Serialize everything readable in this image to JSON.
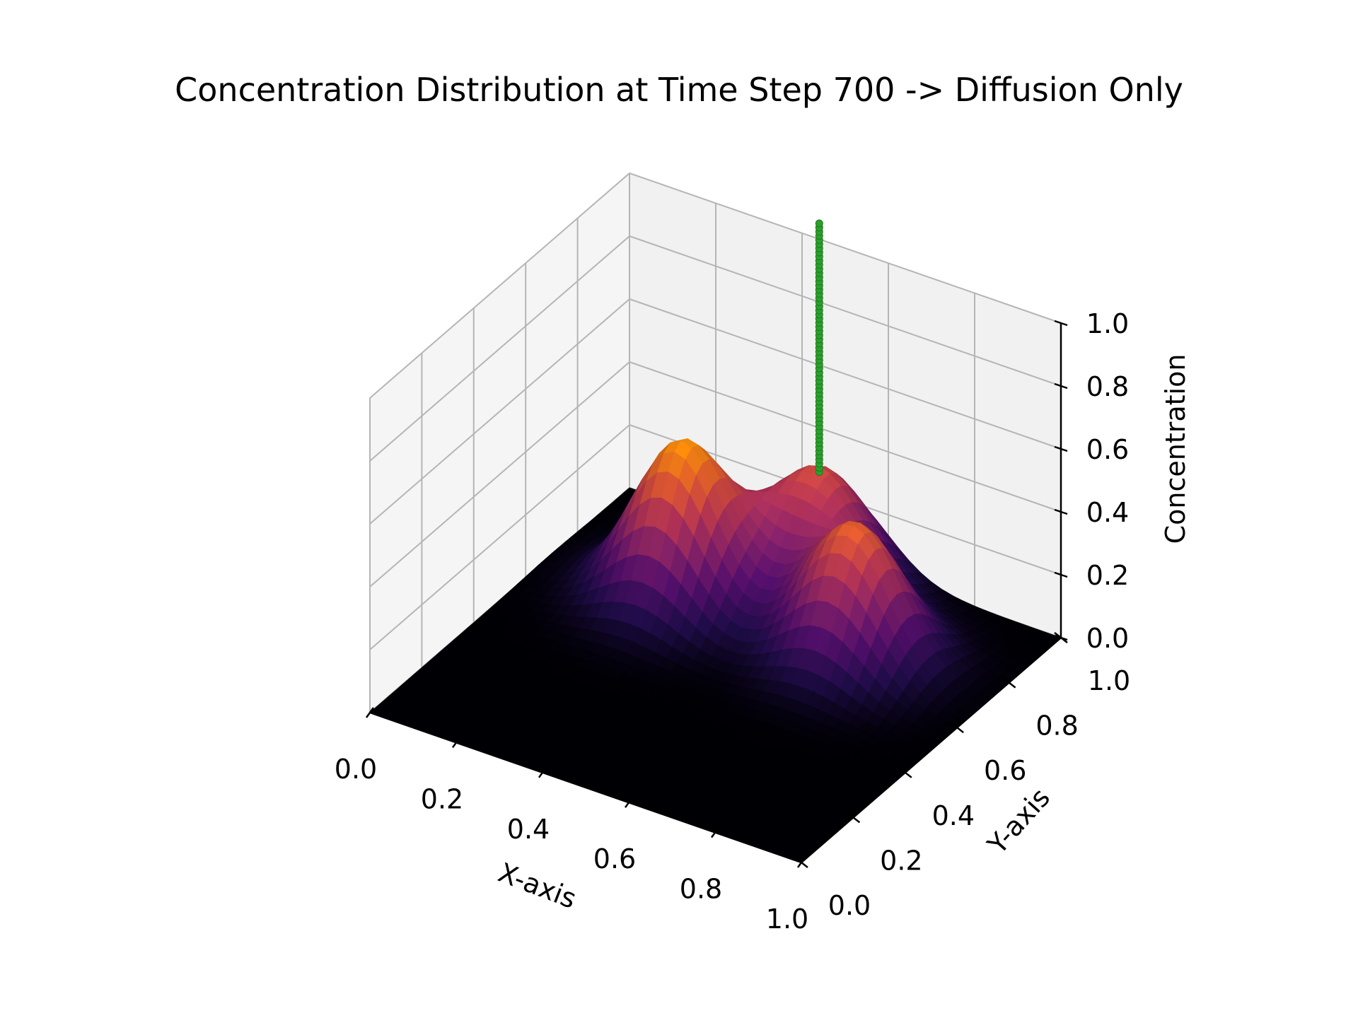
{
  "chart_data": {
    "type": "surface3d",
    "title": "Concentration Distribution at Time Step 700 -> Diffusion Only",
    "xlabel": "X-axis",
    "ylabel": "Y-axis",
    "zlabel": "Concentration",
    "xlim": [
      0.0,
      1.0
    ],
    "ylim": [
      0.0,
      1.0
    ],
    "zlim": [
      0.0,
      1.0
    ],
    "x_ticks": [
      "0.0",
      "0.2",
      "0.4",
      "0.6",
      "0.8",
      "1.0"
    ],
    "y_ticks": [
      "0.0",
      "0.2",
      "0.4",
      "0.6",
      "0.8",
      "1.0"
    ],
    "z_ticks": [
      "0.0",
      "0.2",
      "0.4",
      "0.6",
      "0.8",
      "1.0"
    ],
    "grid": true,
    "colormap": "inferno",
    "surface_peaks": [
      {
        "x": 0.3,
        "y": 0.7,
        "z": 0.5
      },
      {
        "x": 0.7,
        "y": 0.7,
        "z": 0.42
      },
      {
        "x": 0.5,
        "y": 0.9,
        "z": 0.36
      }
    ],
    "particle_column": {
      "x": 0.5,
      "y": 0.9,
      "z_range": [
        0.36,
        1.15
      ],
      "color": "#2ca02c"
    }
  }
}
